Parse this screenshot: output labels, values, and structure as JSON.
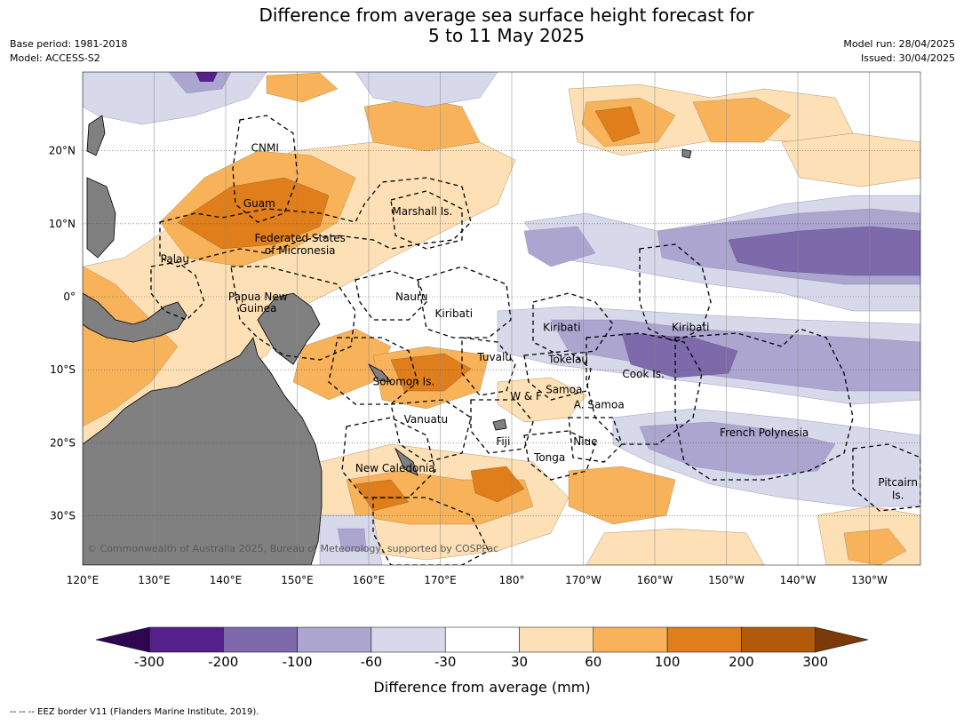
{
  "title_line1": "Difference from average sea surface height forecast for",
  "title_line2": "5 to 11 May 2025",
  "base_period": "Base period: 1981-2018",
  "model": "Model: ACCESS-S2",
  "model_run": "Model run: 28/04/2025",
  "issued": "Issued: 30/04/2025",
  "copyright": "© Commonwealth of Australia 2025, Bureau of Meteorology, supported by COSPPac",
  "footnote": "-- -- -- EEZ border V11 (Flanders Marine Institute, 2019).",
  "colorbar_label": "Difference from average (mm)",
  "lon_ticks": [
    "120°E",
    "130°E",
    "140°E",
    "150°E",
    "160°E",
    "170°E",
    "180°",
    "170°W",
    "160°W",
    "150°W",
    "140°W",
    "130°W"
  ],
  "lat_ticks": [
    "20°N",
    "10°N",
    "0°",
    "10°S",
    "20°S",
    "30°S"
  ],
  "colorbar": {
    "ticks": [
      "-300",
      "-200",
      "-100",
      "-60",
      "-30",
      "30",
      "60",
      "100",
      "200",
      "300"
    ],
    "colors": [
      "#56208a",
      "#7e6aaa",
      "#aca5d0",
      "#d8d8eb",
      "#ffffff",
      "#fde0b5",
      "#f8b35a",
      "#df7e1a",
      "#b25a0a"
    ],
    "under_color": "#2e0750",
    "over_color": "#7a3a0a"
  },
  "labels": [
    {
      "text": "CNMI",
      "lon": 145.5,
      "lat": 20.4
    },
    {
      "text": "Guam",
      "lon": 144.7,
      "lat": 12.8
    },
    {
      "text": "Marshall Is.",
      "lon": 167.5,
      "lat": 11.7
    },
    {
      "text": "Federated States",
      "lon": 150.4,
      "lat": 8.0
    },
    {
      "text": "of Micronesia",
      "lon": 150.4,
      "lat": 6.3
    },
    {
      "text": "Palau",
      "lon": 132.9,
      "lat": 5.2
    },
    {
      "text": "Papua New",
      "lon": 144.5,
      "lat": 0.0
    },
    {
      "text": "Guinea",
      "lon": 144.5,
      "lat": -1.6
    },
    {
      "text": "Nauru",
      "lon": 166.0,
      "lat": 0.0
    },
    {
      "text": "Kiribati",
      "lon": 171.9,
      "lat": -2.3
    },
    {
      "text": "Kiribati",
      "lon": 187.0,
      "lat": -4.2
    },
    {
      "text": "Kiribati",
      "lon": 205.0,
      "lat": -4.2
    },
    {
      "text": "Tuvalu",
      "lon": 177.6,
      "lat": -8.3
    },
    {
      "text": "Tokelau",
      "lon": 187.9,
      "lat": -8.6
    },
    {
      "text": "Solomon Is.",
      "lon": 164.9,
      "lat": -11.6
    },
    {
      "text": "Cook Is.",
      "lon": 198.4,
      "lat": -10.6
    },
    {
      "text": "Samoa",
      "lon": 187.3,
      "lat": -12.7
    },
    {
      "text": "W & F",
      "lon": 182.0,
      "lat": -13.6
    },
    {
      "text": "A. Samoa",
      "lon": 192.2,
      "lat": -14.8
    },
    {
      "text": "Vanuatu",
      "lon": 168.0,
      "lat": -16.8
    },
    {
      "text": "Fiji",
      "lon": 178.8,
      "lat": -19.8
    },
    {
      "text": "Niue",
      "lon": 190.3,
      "lat": -19.8
    },
    {
      "text": "French Polynesia",
      "lon": 215.3,
      "lat": -18.6
    },
    {
      "text": "Tonga",
      "lon": 185.3,
      "lat": -22.0
    },
    {
      "text": "New Caledonia",
      "lon": 163.7,
      "lat": -23.5
    },
    {
      "text": "Pitcairn",
      "lon": 234.0,
      "lat": -25.4
    },
    {
      "text": "Is.",
      "lon": 234.0,
      "lat": -27.2
    }
  ]
}
